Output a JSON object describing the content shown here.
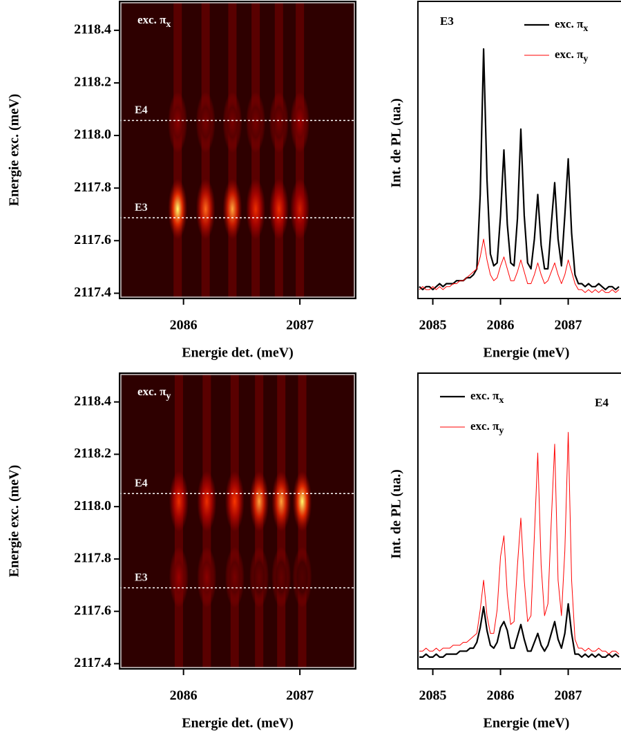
{
  "chart_data": [
    {
      "type": "heatmap",
      "annotation": "exc. πx",
      "xlabel": "Energie det. (meV)",
      "ylabel": "Energie exc. (meV)",
      "xlim": [
        2085.45,
        2087.48
      ],
      "ylim": [
        2117.38,
        2118.51
      ],
      "xticks": [
        2086,
        2087
      ],
      "yticks": [
        2117.4,
        2117.6,
        2117.8,
        {
          "value": 2118,
          "label": "2118.0"
        },
        2118.2,
        2118.4
      ],
      "x": [
        2085.95,
        2086.19,
        2086.42,
        2086.62,
        2086.82,
        2087.0
      ],
      "y": [
        2117.72,
        2118.05
      ],
      "z": [
        [
          1.0,
          0.75,
          0.85,
          0.6,
          0.6,
          0.5
        ],
        [
          0.25,
          0.2,
          0.2,
          0.2,
          0.2,
          0.3
        ]
      ],
      "colormap": [
        "#2e0000",
        "#a80000",
        "#ff3a00",
        "#ffff70"
      ],
      "hlines": [
        {
          "value": 2118.057,
          "label": "E4"
        },
        {
          "value": 2117.687,
          "label": "E3"
        }
      ]
    },
    {
      "type": "line",
      "corner_label": "E3",
      "legend": "upper right",
      "xlabel": "Energie (meV)",
      "ylabel": "Int. de PL (ua.)",
      "xlim": [
        2084.78,
        2087.78
      ],
      "ylim": [
        0,
        100
      ],
      "xticks": [
        2085,
        2086,
        2087
      ],
      "x": [
        2084.8,
        2084.85,
        2084.9,
        2084.95,
        2085,
        2085.05,
        2085.1,
        2085.15,
        2085.2,
        2085.25,
        2085.3,
        2085.35,
        2085.4,
        2085.45,
        2085.5,
        2085.55,
        2085.6,
        2085.65,
        2085.7,
        2085.75,
        2085.8,
        2085.85,
        2085.9,
        2085.95,
        2086,
        2086.05,
        2086.1,
        2086.15,
        2086.2,
        2086.25,
        2086.3,
        2086.35,
        2086.4,
        2086.45,
        2086.5,
        2086.55,
        2086.6,
        2086.65,
        2086.7,
        2086.75,
        2086.8,
        2086.85,
        2086.9,
        2086.95,
        2087,
        2087.05,
        2087.1,
        2087.15,
        2087.2,
        2087.25,
        2087.3,
        2087.35,
        2087.4,
        2087.45,
        2087.5,
        2087.55,
        2087.6,
        2087.65,
        2087.7,
        2087.75
      ],
      "series": [
        {
          "name": "exc. πx",
          "color": "#000000",
          "width": 2.2,
          "values": [
            4,
            3,
            4,
            4,
            3,
            4,
            5,
            4,
            5,
            5,
            5,
            6,
            6,
            6,
            7,
            7,
            8,
            10,
            35,
            84,
            40,
            15,
            11,
            12,
            28,
            50,
            25,
            12,
            11,
            27,
            57,
            28,
            12,
            10,
            20,
            35,
            18,
            10,
            10,
            25,
            39,
            20,
            11,
            28,
            47,
            22,
            8,
            5,
            5,
            4,
            5,
            4,
            4,
            5,
            4,
            3,
            4,
            4,
            3,
            4
          ]
        },
        {
          "name": "exc. πy",
          "color": "#ff0000",
          "width": 1,
          "values": [
            3,
            4,
            3,
            3,
            4,
            3,
            4,
            3,
            4,
            4,
            5,
            5,
            6,
            6,
            7,
            8,
            9,
            10,
            14,
            20,
            13,
            8,
            6,
            7,
            11,
            14,
            10,
            6,
            6,
            9,
            13,
            9,
            5,
            5,
            8,
            12,
            8,
            5,
            6,
            9,
            12,
            8,
            5,
            8,
            13,
            9,
            5,
            3,
            3,
            2,
            3,
            2,
            3,
            2,
            3,
            2,
            2,
            3,
            2,
            3
          ]
        }
      ]
    },
    {
      "type": "heatmap",
      "annotation": "exc. πy",
      "xlabel": "Energie det. (meV)",
      "ylabel": "Energie exc. (meV)",
      "xlim": [
        2085.45,
        2087.48
      ],
      "ylim": [
        2117.38,
        2118.51
      ],
      "xticks": [
        2086,
        2087
      ],
      "yticks": [
        2117.4,
        2117.6,
        2117.8,
        {
          "value": 2118,
          "label": "2118.0"
        },
        2118.2,
        2118.4
      ],
      "x": [
        2085.96,
        2086.2,
        2086.44,
        2086.65,
        2086.84,
        2087.02
      ],
      "y": [
        2118.02,
        2117.73
      ],
      "z": [
        [
          0.6,
          0.6,
          0.65,
          0.85,
          0.85,
          1.0
        ],
        [
          0.3,
          0.25,
          0.2,
          0.15,
          0.15,
          0.1
        ]
      ],
      "colormap": [
        "#2e0000",
        "#a80000",
        "#ff3a00",
        "#ffff70"
      ],
      "hlines": [
        {
          "value": 2118.05,
          "label": "E4"
        },
        {
          "value": 2117.69,
          "label": "E3"
        }
      ]
    },
    {
      "type": "line",
      "corner_label": "E4",
      "legend": "upper left",
      "xlabel": "Energie (meV)",
      "ylabel": "Int. de PL (ua.)",
      "xlim": [
        2084.78,
        2087.78
      ],
      "ylim": [
        0,
        100
      ],
      "xticks": [
        2085,
        2086,
        2087
      ],
      "x": [
        2084.8,
        2084.85,
        2084.9,
        2084.95,
        2085,
        2085.05,
        2085.1,
        2085.15,
        2085.2,
        2085.25,
        2085.3,
        2085.35,
        2085.4,
        2085.45,
        2085.5,
        2085.55,
        2085.6,
        2085.65,
        2085.7,
        2085.75,
        2085.8,
        2085.85,
        2085.9,
        2085.95,
        2086,
        2086.05,
        2086.1,
        2086.15,
        2086.2,
        2086.25,
        2086.3,
        2086.35,
        2086.4,
        2086.45,
        2086.5,
        2086.55,
        2086.6,
        2086.65,
        2086.7,
        2086.75,
        2086.8,
        2086.85,
        2086.9,
        2086.95,
        2087,
        2087.05,
        2087.1,
        2087.15,
        2087.2,
        2087.25,
        2087.3,
        2087.35,
        2087.4,
        2087.45,
        2087.5,
        2087.55,
        2087.6,
        2087.65,
        2087.7,
        2087.75
      ],
      "series": [
        {
          "name": "exc. πx",
          "color": "#000000",
          "width": 2.2,
          "values": [
            4,
            4,
            5,
            4,
            4,
            5,
            4,
            4,
            5,
            5,
            5,
            5,
            6,
            6,
            6,
            7,
            7,
            9,
            14,
            21,
            13,
            8,
            7,
            9,
            14,
            16,
            13,
            7,
            7,
            11,
            15,
            10,
            6,
            6,
            9,
            12,
            8,
            6,
            8,
            12,
            16,
            10,
            7,
            12,
            22,
            12,
            5,
            5,
            4,
            5,
            4,
            5,
            4,
            5,
            4,
            4,
            5,
            4,
            5,
            4
          ]
        },
        {
          "name": "exc. πy",
          "color": "#ff0000",
          "width": 1,
          "values": [
            6,
            6,
            7,
            6,
            6,
            7,
            6,
            7,
            7,
            7,
            8,
            8,
            8,
            9,
            9,
            10,
            11,
            12,
            20,
            30,
            18,
            12,
            12,
            20,
            38,
            45,
            25,
            15,
            16,
            35,
            51,
            30,
            16,
            18,
            45,
            73,
            35,
            18,
            22,
            50,
            76,
            30,
            18,
            40,
            80,
            30,
            10,
            7,
            7,
            6,
            7,
            6,
            6,
            7,
            6,
            6,
            5,
            6,
            6,
            5
          ]
        }
      ]
    }
  ]
}
